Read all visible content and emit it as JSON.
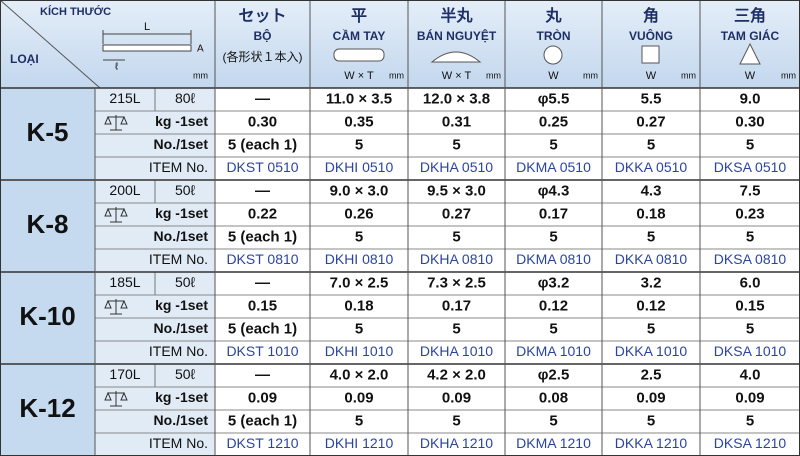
{
  "header": {
    "kich_thuoc": "KÍCH THƯỚC",
    "loai": "LOẠI",
    "diagram": {
      "L": "L",
      "A": "A",
      "l": "ℓ",
      "mm": "mm"
    },
    "columns": [
      {
        "jp": "セット",
        "vn": "BỘ",
        "note": "(各形状１本入)"
      },
      {
        "jp": "平",
        "vn": "CẦM TAY",
        "dims": "W × T",
        "unit": "mm"
      },
      {
        "jp": "半丸",
        "vn": "BÁN NGUYỆT",
        "dims": "W × T",
        "unit": "mm"
      },
      {
        "jp": "丸",
        "vn": "TRÒN",
        "dims": "W",
        "unit": "mm"
      },
      {
        "jp": "角",
        "vn": "VUÔNG",
        "dims": "W",
        "unit": "mm"
      },
      {
        "jp": "三角",
        "vn": "TAM GIÁC",
        "dims": "W",
        "unit": "mm"
      }
    ]
  },
  "row_labels": [
    "kg -1set",
    "No./1set",
    "ITEM No."
  ],
  "groups": [
    {
      "model": "K-5",
      "length": "215L",
      "qty": "80ℓ",
      "dims": [
        "—",
        "11.0 × 3.5",
        "12.0 × 3.8",
        "φ5.5",
        "5.5",
        "9.0"
      ],
      "weights": [
        "0.30",
        "0.35",
        "0.31",
        "0.25",
        "0.27",
        "0.30"
      ],
      "counts": [
        "5 (each 1)",
        "5",
        "5",
        "5",
        "5",
        "5"
      ],
      "items": [
        "DKST 0510",
        "DKHI 0510",
        "DKHA 0510",
        "DKMA 0510",
        "DKKA 0510",
        "DKSA 0510"
      ]
    },
    {
      "model": "K-8",
      "length": "200L",
      "qty": "50ℓ",
      "dims": [
        "—",
        "9.0 × 3.0",
        "9.5 × 3.0",
        "φ4.3",
        "4.3",
        "7.5"
      ],
      "weights": [
        "0.22",
        "0.26",
        "0.27",
        "0.17",
        "0.18",
        "0.23"
      ],
      "counts": [
        "5 (each 1)",
        "5",
        "5",
        "5",
        "5",
        "5"
      ],
      "items": [
        "DKST 0810",
        "DKHI 0810",
        "DKHA 0810",
        "DKMA 0810",
        "DKKA 0810",
        "DKSA 0810"
      ]
    },
    {
      "model": "K-10",
      "length": "185L",
      "qty": "50ℓ",
      "dims": [
        "—",
        "7.0 × 2.5",
        "7.3 × 2.5",
        "φ3.2",
        "3.2",
        "6.0"
      ],
      "weights": [
        "0.15",
        "0.18",
        "0.17",
        "0.12",
        "0.12",
        "0.15"
      ],
      "counts": [
        "5 (each 1)",
        "5",
        "5",
        "5",
        "5",
        "5"
      ],
      "items": [
        "DKST 1010",
        "DKHI 1010",
        "DKHA 1010",
        "DKMA 1010",
        "DKKA 1010",
        "DKSA 1010"
      ]
    },
    {
      "model": "K-12",
      "length": "170L",
      "qty": "50ℓ",
      "dims": [
        "—",
        "4.0 × 2.0",
        "4.2 × 2.0",
        "φ2.5",
        "2.5",
        "4.0"
      ],
      "weights": [
        "0.09",
        "0.09",
        "0.09",
        "0.08",
        "0.09",
        "0.09"
      ],
      "counts": [
        "5 (each 1)",
        "5",
        "5",
        "5",
        "5",
        "5"
      ],
      "items": [
        "DKST 1210",
        "DKHI 1210",
        "DKHA 1210",
        "DKMA 1210",
        "DKKA 1210",
        "DKSA 1210"
      ]
    }
  ]
}
